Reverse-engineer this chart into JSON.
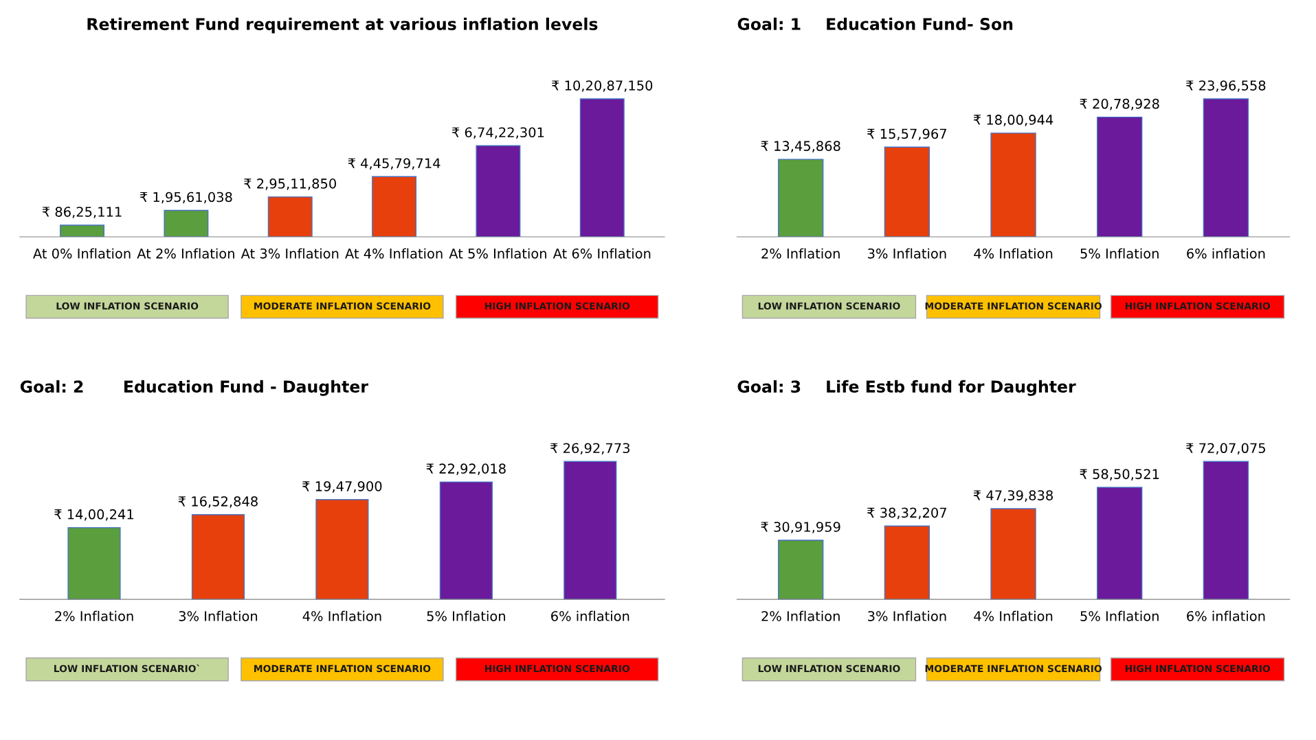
{
  "chart_data": [
    {
      "type": "bar",
      "title": "Retirement Fund requirement at various inflation levels",
      "categories": [
        "At 0% Inflation",
        "At 2% Inflation",
        "At 3% Inflation",
        "At 4% Inflation",
        "At 5% Inflation",
        "At 6% Inflation"
      ],
      "values": [
        8625111,
        19561038,
        29511850,
        44579714,
        67422301,
        102087150
      ],
      "value_labels": [
        "₹ 86,25,111",
        "₹ 1,95,61,038",
        "₹ 2,95,11,850",
        "₹ 4,45,79,714",
        "₹ 6,74,22,301",
        "₹ 10,20,87,150"
      ],
      "colors": [
        "#5a9e3e",
        "#5a9e3e",
        "#e8400c",
        "#e8400c",
        "#6a1a9a",
        "#6a1a9a"
      ],
      "annotations": [
        "LOW INFLATION SCENARIO",
        "MODERATE INFLATION SCENARIO",
        "HIGH INFLATION SCENARIO"
      ],
      "grid": false,
      "legend": false
    },
    {
      "type": "bar",
      "title": "Goal: 1",
      "subtitle": "Education Fund- Son",
      "categories": [
        "2% Inflation",
        "3% Inflation",
        "4% Inflation",
        "5% Inflation",
        "6% inflation"
      ],
      "values": [
        1345868,
        1557967,
        1800944,
        2078928,
        2396558
      ],
      "value_labels": [
        "₹ 13,45,868",
        "₹ 15,57,967",
        "₹ 18,00,944",
        "₹ 20,78,928",
        "₹ 23,96,558"
      ],
      "colors": [
        "#5a9e3e",
        "#e8400c",
        "#e8400c",
        "#6a1a9a",
        "#6a1a9a"
      ],
      "annotations": [
        "LOW INFLATION SCENARIO",
        "MODERATE INFLATION SCENARIO",
        "HIGH INFLATION SCENARIO"
      ],
      "grid": false,
      "legend": false
    },
    {
      "type": "bar",
      "title": "Goal: 2",
      "subtitle": "Education Fund - Daughter",
      "categories": [
        "2% Inflation",
        "3% Inflation",
        "4% Inflation",
        "5% Inflation",
        "6% inflation"
      ],
      "values": [
        1400241,
        1652848,
        1947900,
        2292018,
        2692773
      ],
      "value_labels": [
        "₹ 14,00,241",
        "₹ 16,52,848",
        "₹ 19,47,900",
        "₹ 22,92,018",
        "₹ 26,92,773"
      ],
      "colors": [
        "#5a9e3e",
        "#e8400c",
        "#e8400c",
        "#6a1a9a",
        "#6a1a9a"
      ],
      "annotations": [
        "LOW INFLATION SCENARIO`",
        "MODERATE INFLATION SCENARIO",
        "HIGH INFLATION SCENARIO"
      ],
      "grid": false,
      "legend": false
    },
    {
      "type": "bar",
      "title": "Goal: 3",
      "subtitle": "Life Estb fund for Daughter",
      "categories": [
        "2% Inflation",
        "3% Inflation",
        "4% Inflation",
        "5% Inflation",
        "6% inflation"
      ],
      "values": [
        3091959,
        3832207,
        4739838,
        5850521,
        7207075
      ],
      "value_labels": [
        "₹ 30,91,959",
        "₹ 38,32,207",
        "₹ 47,39,838",
        "₹ 58,50,521",
        "₹ 72,07,075"
      ],
      "colors": [
        "#5a9e3e",
        "#e8400c",
        "#e8400c",
        "#6a1a9a",
        "#6a1a9a"
      ],
      "annotations": [
        "LOW INFLATION SCENARIO",
        "MODERATE INFLATION SCENARIO",
        "HIGH INFLATION SCENARIO"
      ],
      "grid": false,
      "legend": false
    }
  ]
}
